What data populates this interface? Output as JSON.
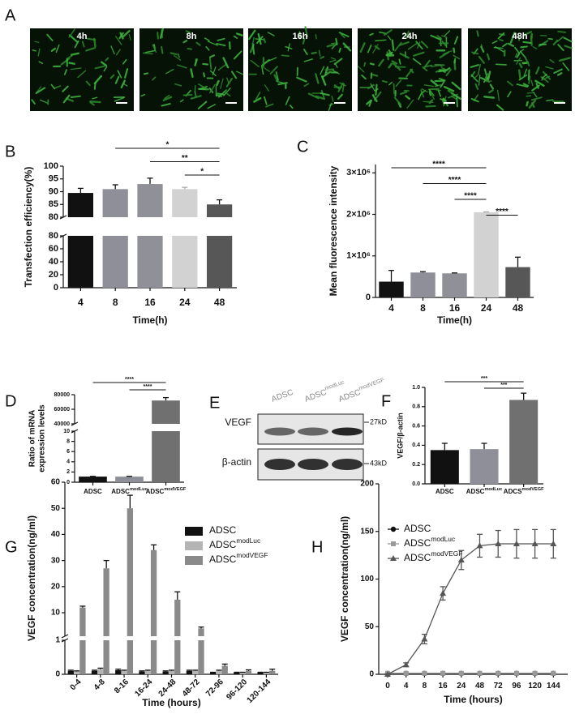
{
  "panel_a": {
    "label": "A",
    "titles": [
      "4h",
      "8h",
      "16h",
      "24h",
      "48h"
    ]
  },
  "chart_data": [
    {
      "type": "bar",
      "label": "B",
      "ylabel": "Transfection efficiency(%)",
      "xlabel": "Time(h)",
      "categories": [
        "4",
        "8",
        "16",
        "24",
        "48"
      ],
      "values": [
        89.5,
        91,
        93,
        91,
        85
      ],
      "errors": [
        1.8,
        1.7,
        2.3,
        0.7,
        1.8
      ],
      "colors": [
        "#111111",
        "#8e8f99",
        "#909098",
        "#d2d2d2",
        "#575757"
      ],
      "y_segments": [
        {
          "ylim": [
            0,
            80
          ],
          "yticks": [
            0,
            20,
            40,
            60,
            80
          ]
        },
        {
          "ylim": [
            80,
            100
          ],
          "yticks": [
            80,
            85,
            90,
            95,
            100
          ]
        }
      ],
      "annotations": [
        {
          "text": "*",
          "from": "8",
          "to": "48"
        },
        {
          "text": "**",
          "from": "16",
          "to": "48"
        },
        {
          "text": "*",
          "from": "24",
          "to": "48"
        }
      ]
    },
    {
      "type": "bar",
      "label": "C",
      "ylabel": "Mean fluorescence intensity",
      "xlabel": "Time(h)",
      "categories": [
        "4",
        "8",
        "16",
        "24",
        "48"
      ],
      "values": [
        380000,
        600000,
        580000,
        2050000,
        730000
      ],
      "errors": [
        270000,
        20000,
        10000,
        10000,
        240000
      ],
      "colors": [
        "#111111",
        "#8e8f99",
        "#909098",
        "#d2d2d2",
        "#575757"
      ],
      "ylim": [
        0,
        3200000
      ],
      "yticks": [
        0,
        {
          "value": 1000000,
          "label": "1×10⁶"
        },
        {
          "value": 2000000,
          "label": "2×10⁶"
        },
        {
          "value": 3000000,
          "label": "3×10⁶"
        }
      ],
      "annotations": [
        {
          "text": "****",
          "from": "4",
          "to": "24"
        },
        {
          "text": "****",
          "from": "8",
          "to": "24"
        },
        {
          "text": "****",
          "from": "16",
          "to": "24"
        },
        {
          "text": "****",
          "from": "24",
          "to": "48"
        }
      ]
    },
    {
      "type": "bar",
      "label": "D",
      "ylabel": [
        "Ratio of mRNA",
        "expression levels"
      ],
      "categories": [
        "ADSC",
        "ADSC",
        "ADSC"
      ],
      "category_superscripts": [
        null,
        "modLuc",
        "modVEGF"
      ],
      "values": [
        1.1,
        1.1,
        72000
      ],
      "errors": [
        0.05,
        0.05,
        4000
      ],
      "colors": [
        "#111111",
        "#8e8f99",
        "#707070"
      ],
      "y_segments": [
        {
          "ylim": [
            0,
            10
          ],
          "yticks": [
            0,
            2,
            4,
            6,
            8,
            10
          ]
        },
        {
          "ylim": [
            40000,
            80000
          ],
          "yticks": [
            40000,
            60000,
            80000
          ]
        }
      ],
      "annotations": [
        {
          "text": "****",
          "from": 0,
          "to": 2
        },
        {
          "text": "****",
          "from": 1,
          "to": 2
        }
      ]
    },
    {
      "type": "bar",
      "label": "F",
      "ylabel": "VEGF/β-actin",
      "categories": [
        "ADSC",
        "ADSC",
        "ADCS"
      ],
      "category_superscripts": [
        null,
        "modLuc",
        "modVEGF"
      ],
      "values": [
        0.35,
        0.36,
        0.87
      ],
      "errors": [
        0.07,
        0.06,
        0.07
      ],
      "colors": [
        "#111111",
        "#8e8f99",
        "#707070"
      ],
      "ylim": [
        0,
        1.0
      ],
      "yticks": [
        {
          "value": 0,
          "label": "0.0"
        },
        0.2,
        0.4,
        0.6,
        0.8,
        {
          "value": 1.0,
          "label": "1.0"
        }
      ],
      "annotations": [
        {
          "text": "***",
          "from": 0,
          "to": 2
        },
        {
          "text": "***",
          "from": 1,
          "to": 2
        }
      ]
    },
    {
      "type": "bar",
      "label": "G",
      "ylabel": "VEGF concentration(ng/ml)",
      "xlabel": "Time (hours)",
      "categories": [
        "0-4",
        "4-8",
        "8-16",
        "16-24",
        "24-48",
        "48-72",
        "72-96",
        "96-120",
        "120-144"
      ],
      "series": [
        {
          "name": "ADSC",
          "color": "#111111",
          "values": [
            0.1,
            0.1,
            0.12,
            0.08,
            0.08,
            0.1,
            0.05,
            0.05,
            0.05
          ],
          "errors": [
            0.02,
            0.02,
            0.03,
            0.02,
            0.02,
            0.02,
            0.01,
            0.01,
            0.01
          ]
        },
        {
          "name": "ADSC",
          "name_superscript": "modLuc",
          "color": "#b4b4b4",
          "values": [
            0.08,
            0.15,
            0.1,
            0.1,
            0.1,
            0.1,
            0.1,
            0.05,
            0.05
          ],
          "errors": [
            0.02,
            0.03,
            0.02,
            0.02,
            0.02,
            0.02,
            0.02,
            0.01,
            0.01
          ]
        },
        {
          "name": "ADSC",
          "name_superscript": "modVEGF",
          "color": "#8a8a8a",
          "values": [
            12,
            27,
            50,
            34,
            15,
            4,
            0.25,
            0.1,
            0.1
          ],
          "errors": [
            0.5,
            3,
            5,
            2,
            3,
            0.5,
            0.05,
            0.03,
            0.05
          ]
        }
      ],
      "y_segments": [
        {
          "ylim": [
            0,
            1
          ],
          "yticks": [
            0,
            1
          ]
        },
        {
          "ylim": [
            1,
            60
          ],
          "yticks": [
            10,
            20,
            30,
            40,
            50,
            60
          ]
        }
      ]
    },
    {
      "type": "line",
      "label": "H",
      "ylabel": "VEGF concentration(ng/ml)",
      "xlabel": "Time (hours)",
      "categories": [
        "0",
        "4",
        "8",
        "16",
        "24",
        "48",
        "72",
        "96",
        "120",
        "144"
      ],
      "series": [
        {
          "name": "ADSC",
          "color": "#111111",
          "marker": "circle",
          "values": [
            1,
            1,
            1,
            1,
            1,
            1,
            1,
            1,
            1,
            1
          ]
        },
        {
          "name": "ADSC",
          "name_superscript": "modLuc",
          "color": "#999999",
          "marker": "square",
          "values": [
            1,
            1,
            1,
            1,
            1,
            1,
            1,
            1,
            1,
            1
          ]
        },
        {
          "name": "ADSC",
          "name_superscript": "modVEGF",
          "color": "#555555",
          "marker": "triangle",
          "values": [
            0,
            10,
            37,
            85,
            120,
            135,
            137,
            137,
            137,
            137
          ],
          "errors": [
            0.5,
            2,
            5,
            7,
            10,
            12,
            14,
            15,
            15,
            15
          ]
        }
      ],
      "ylim": [
        0,
        200
      ],
      "yticks": [
        0,
        50,
        100,
        150,
        200
      ]
    }
  ],
  "panel_e": {
    "label": "E",
    "lanes": [
      "ADSC",
      "ADSC",
      "ADSC"
    ],
    "lane_superscripts": [
      null,
      "modLuc",
      "modVEGF"
    ],
    "rows": [
      "VEGF",
      "β-actin"
    ],
    "markers": [
      "27kD",
      "43kD"
    ]
  }
}
